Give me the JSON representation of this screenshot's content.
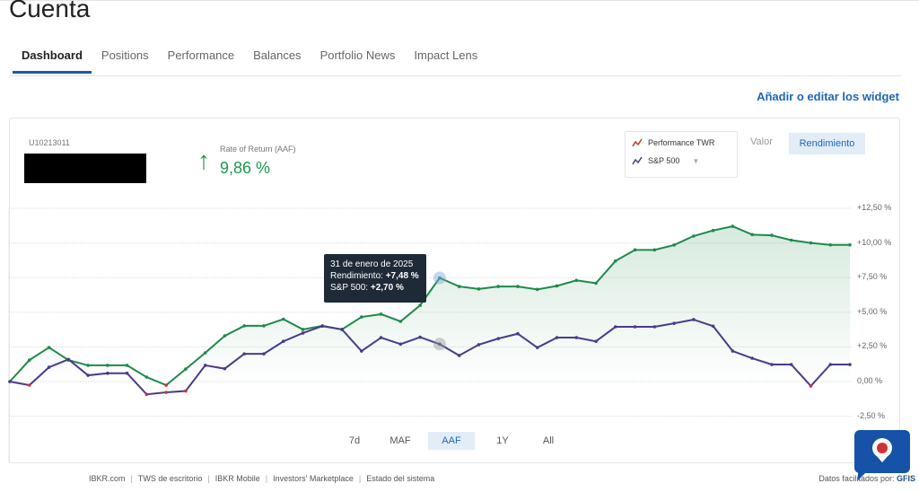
{
  "page_title": "Cuenta",
  "tabs": [
    {
      "label": "Dashboard",
      "active": true
    },
    {
      "label": "Positions"
    },
    {
      "label": "Performance"
    },
    {
      "label": "Balances"
    },
    {
      "label": "Portfolio News"
    },
    {
      "label": "Impact Lens"
    }
  ],
  "add_widget_link": "Añadir o editar los widget",
  "widget": {
    "account_id": "U10213011",
    "rate_label": "Rate of Return (AAF)",
    "rate_value": "9,86 %",
    "rate_arrow": "↑",
    "legend": [
      {
        "label": "Performance TWR",
        "color": "#c0392b"
      },
      {
        "label": "S&P 500",
        "color": "#4a3a8c"
      }
    ],
    "legend_dropdown": "▼",
    "toggle": {
      "valor": "Valor",
      "rendimiento": "Rendimiento",
      "selected": "Rendimiento"
    },
    "ranges": [
      {
        "label": "7d"
      },
      {
        "label": "MAF"
      },
      {
        "label": "AAF",
        "active": true
      },
      {
        "label": "1Y"
      },
      {
        "label": "All"
      }
    ],
    "tooltip": {
      "date": "31 de enero de 2025",
      "rend_label": "Rendimiento: ",
      "rend_value": "+7,48 %",
      "sp_label": "S&P 500: ",
      "sp_value": "+2,70 %"
    }
  },
  "chart_data": {
    "type": "line",
    "ylim": [
      -2.5,
      12.5
    ],
    "yticks": [
      12.5,
      10,
      7.5,
      5,
      2.5,
      0,
      -2.5
    ],
    "ytick_labels": [
      "+12,50 %",
      "+10,00 %",
      "+7,50 %",
      "+5,00 %",
      "+2,50 %",
      "0,00 %",
      "-2,50 %"
    ],
    "grid": true,
    "positive_color": "#1e8a4a",
    "negative_color": "#d0303a",
    "highlight_index": 22,
    "series": [
      {
        "name": "Performance TWR",
        "color": "#1e8a4a",
        "fill": true,
        "values": [
          0,
          1.55,
          2.46,
          1.55,
          1.17,
          1.17,
          1.17,
          0.32,
          -0.26,
          0.9,
          2.07,
          3.3,
          4.02,
          4.02,
          4.5,
          3.76,
          4.02,
          3.76,
          4.66,
          4.86,
          4.34,
          5.5,
          7.48,
          6.86,
          6.68,
          6.86,
          6.86,
          6.65,
          6.9,
          7.3,
          7.1,
          8.7,
          9.5,
          9.5,
          9.85,
          10.5,
          10.9,
          11.2,
          10.6,
          10.55,
          10.2,
          10.0,
          9.86,
          9.86
        ]
      },
      {
        "name": "S&P 500",
        "color": "#4a3a8c",
        "fill": false,
        "values": [
          0,
          -0.26,
          1.03,
          1.6,
          0.45,
          0.6,
          0.6,
          -0.92,
          -0.78,
          -0.68,
          1.17,
          0.93,
          2.0,
          2.0,
          2.9,
          3.5,
          4.0,
          3.76,
          2.2,
          3.17,
          2.7,
          3.2,
          2.7,
          1.88,
          2.66,
          3.1,
          3.45,
          2.45,
          3.17,
          3.17,
          2.9,
          3.95,
          3.95,
          3.95,
          4.2,
          4.47,
          4.0,
          2.2,
          1.68,
          1.23,
          1.23,
          -0.32,
          1.23,
          1.23
        ]
      }
    ]
  },
  "footer": {
    "links": [
      "IBKR.com",
      "TWS de escritorio",
      "IBKR Mobile",
      "Investors' Marketplace",
      "Estado del sistema"
    ],
    "separator": "|",
    "datos_label": "Datos facilitados por:",
    "datos_brand": "GFIS"
  }
}
